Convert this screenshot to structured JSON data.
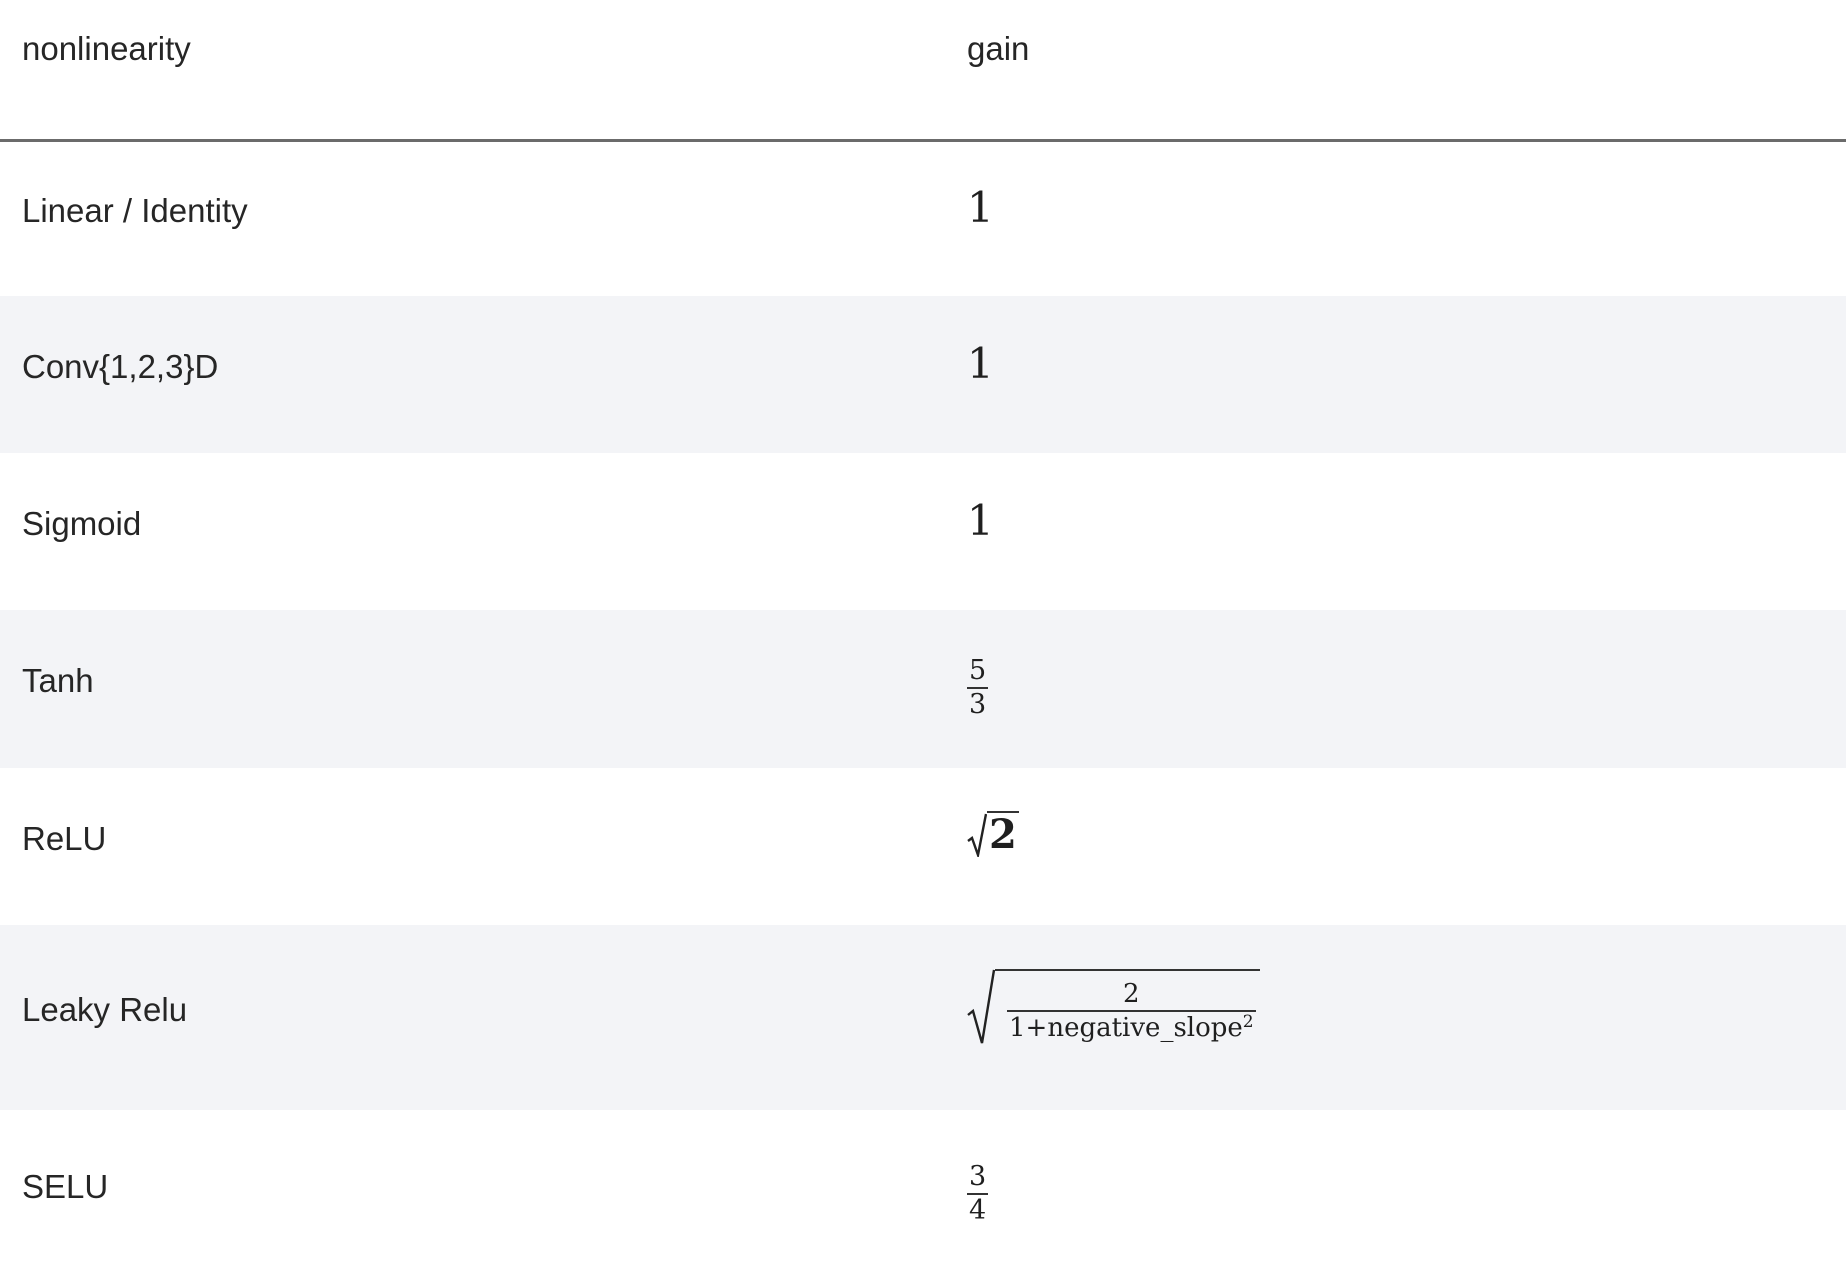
{
  "table": {
    "headers": {
      "name": "nonlinearity",
      "gain": "gain"
    },
    "rows": [
      {
        "name": "Linear / Identity",
        "gain": "1"
      },
      {
        "name": "Conv{1,2,3}D",
        "gain": "1"
      },
      {
        "name": "Sigmoid",
        "gain": "1"
      },
      {
        "name": "Tanh",
        "gain_num": "5",
        "gain_den": "3"
      },
      {
        "name": "ReLU",
        "gain_radicand": "2"
      },
      {
        "name": "Leaky Relu",
        "gain_num": "2",
        "gain_den": "1+negative_slope",
        "gain_den_exp": "2"
      },
      {
        "name": "SELU",
        "gain_num": "3",
        "gain_den": "4"
      }
    ]
  }
}
